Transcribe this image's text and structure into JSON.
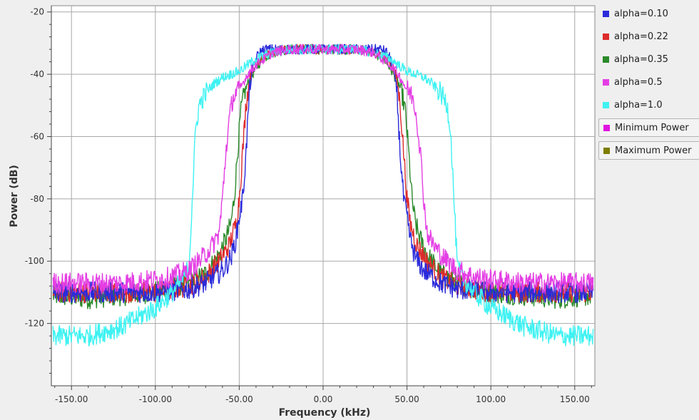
{
  "chart_data": {
    "type": "line",
    "xlabel": "Frequency (kHz)",
    "ylabel": "Power (dB)",
    "xlim": [
      -162,
      162
    ],
    "ylim": [
      -140,
      -18
    ],
    "x_ticks": [
      -150,
      -100,
      -50,
      0,
      50,
      100,
      150
    ],
    "x_tick_labels": [
      "-150.00",
      "-100.00",
      "-50.00",
      "0.00",
      "50.00",
      "100.00",
      "150.00"
    ],
    "y_ticks": [
      -20,
      -40,
      -60,
      -80,
      -100,
      -120
    ],
    "y_tick_labels": [
      "-20",
      "-40",
      "-60",
      "-80",
      "-100",
      "-120"
    ],
    "grid": true,
    "legend_position": "right",
    "series": [
      {
        "name": "alpha=0.10",
        "color": "#2b2bdb",
        "x": [
          -160,
          -140,
          -120,
          -100,
          -80,
          -70,
          -60,
          -55,
          -52,
          -50,
          -48,
          -46,
          -44,
          -42,
          -40,
          -38,
          -35,
          -30,
          -20,
          0,
          20,
          30,
          35,
          38,
          40,
          42,
          44,
          46,
          48,
          50,
          52,
          55,
          60,
          70,
          80,
          100,
          120,
          140,
          160
        ],
        "y": [
          -110,
          -110,
          -110,
          -110,
          -109,
          -107,
          -103,
          -99,
          -93,
          -86,
          -80,
          -66,
          -46,
          -38,
          -35,
          -33,
          -32,
          -32,
          -32,
          -32,
          -32,
          -32,
          -32,
          -33,
          -35,
          -38,
          -46,
          -66,
          -80,
          -86,
          -93,
          -99,
          -103,
          -107,
          -109,
          -110,
          -110,
          -110,
          -110
        ]
      },
      {
        "name": "alpha=0.22",
        "color": "#dd2b2b",
        "x": [
          -160,
          -140,
          -120,
          -100,
          -80,
          -70,
          -62,
          -56,
          -52,
          -50,
          -48,
          -46,
          -44,
          -42,
          -40,
          -36,
          -30,
          -20,
          0,
          20,
          30,
          36,
          40,
          42,
          44,
          46,
          48,
          50,
          52,
          56,
          62,
          70,
          80,
          100,
          120,
          140,
          160
        ],
        "y": [
          -110,
          -110,
          -110,
          -110,
          -108,
          -105,
          -100,
          -95,
          -88,
          -80,
          -65,
          -50,
          -42,
          -38,
          -36,
          -34,
          -33,
          -32,
          -32,
          -32,
          -33,
          -34,
          -36,
          -38,
          -42,
          -50,
          -65,
          -80,
          -88,
          -95,
          -100,
          -105,
          -108,
          -110,
          -110,
          -110,
          -110
        ]
      },
      {
        "name": "alpha=0.35",
        "color": "#2a8a2a",
        "x": [
          -160,
          -140,
          -120,
          -100,
          -80,
          -70,
          -62,
          -58,
          -55,
          -53,
          -51,
          -49,
          -47,
          -45,
          -43,
          -40,
          -36,
          -30,
          -20,
          0,
          20,
          30,
          36,
          40,
          43,
          45,
          47,
          49,
          51,
          53,
          55,
          58,
          62,
          70,
          80,
          100,
          120,
          140,
          160
        ],
        "y": [
          -111,
          -112,
          -111,
          -110,
          -107,
          -104,
          -98,
          -93,
          -88,
          -80,
          -65,
          -52,
          -46,
          -43,
          -41,
          -38,
          -35,
          -33,
          -32,
          -32,
          -32,
          -33,
          -35,
          -38,
          -41,
          -43,
          -46,
          -52,
          -65,
          -80,
          -88,
          -93,
          -98,
          -104,
          -107,
          -110,
          -111,
          -112,
          -111
        ]
      },
      {
        "name": "alpha=0.5",
        "color": "#e43ee4",
        "x": [
          -160,
          -140,
          -120,
          -100,
          -90,
          -80,
          -72,
          -66,
          -62,
          -60,
          -58,
          -56,
          -54,
          -52,
          -50,
          -48,
          -45,
          -40,
          -35,
          -30,
          -20,
          0,
          20,
          30,
          35,
          40,
          45,
          48,
          50,
          52,
          54,
          56,
          58,
          60,
          62,
          66,
          72,
          80,
          90,
          100,
          120,
          140,
          160
        ],
        "y": [
          -107,
          -107,
          -107,
          -106,
          -105,
          -103,
          -99,
          -95,
          -91,
          -80,
          -65,
          -55,
          -48,
          -46,
          -45,
          -43,
          -40,
          -37,
          -35,
          -33,
          -32,
          -32,
          -32,
          -33,
          -35,
          -37,
          -40,
          -43,
          -45,
          -46,
          -48,
          -55,
          -65,
          -80,
          -91,
          -95,
          -99,
          -103,
          -105,
          -106,
          -107,
          -107,
          -107
        ]
      },
      {
        "name": "alpha=1.0",
        "color": "#3ff2f2",
        "x": [
          -160,
          -140,
          -120,
          -100,
          -90,
          -84,
          -80,
          -78,
          -76,
          -74,
          -70,
          -65,
          -60,
          -55,
          -50,
          -45,
          -40,
          -30,
          -20,
          0,
          20,
          30,
          40,
          45,
          50,
          55,
          60,
          65,
          70,
          74,
          76,
          78,
          80,
          84,
          90,
          100,
          120,
          140,
          160
        ],
        "y": [
          -124,
          -124,
          -121,
          -115,
          -110,
          -106,
          -102,
          -80,
          -58,
          -50,
          -46,
          -43,
          -41,
          -40,
          -39,
          -37,
          -35,
          -33,
          -32,
          -32,
          -32,
          -33,
          -35,
          -37,
          -39,
          -40,
          -41,
          -43,
          -46,
          -50,
          -58,
          -80,
          -102,
          -106,
          -110,
          -115,
          -121,
          -124,
          -124
        ]
      },
      {
        "name": "Minimum Power",
        "color": "#e012e0",
        "x": [],
        "y": []
      },
      {
        "name": "Maximum Power",
        "color": "#7d7d00",
        "x": [],
        "y": []
      }
    ]
  }
}
